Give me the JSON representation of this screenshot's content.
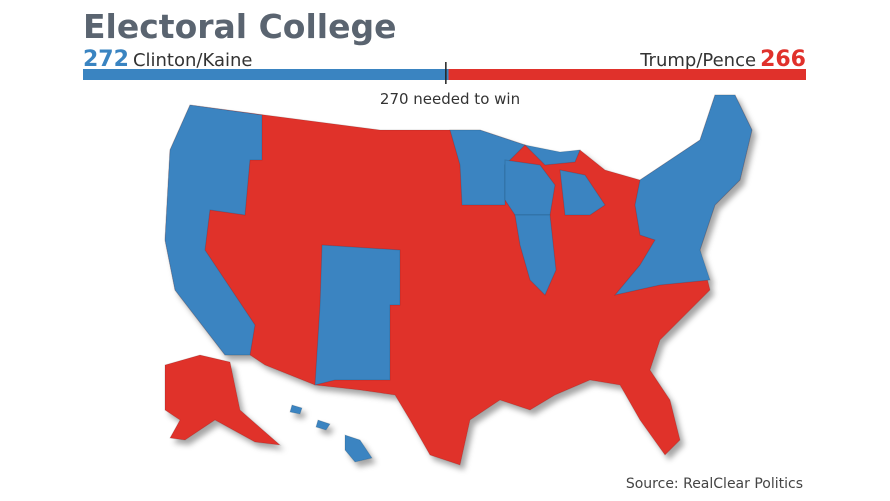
{
  "title": "Electoral College",
  "clinton": {
    "votes": 272,
    "label": "Clinton/Kaine",
    "color": "#3a84c1"
  },
  "trump": {
    "votes": 266,
    "label": "Trump/Pence",
    "color": "#e0312b"
  },
  "threshold": {
    "votes": 270,
    "label": "270 needed to win"
  },
  "source": "Source: RealClear Politics"
}
